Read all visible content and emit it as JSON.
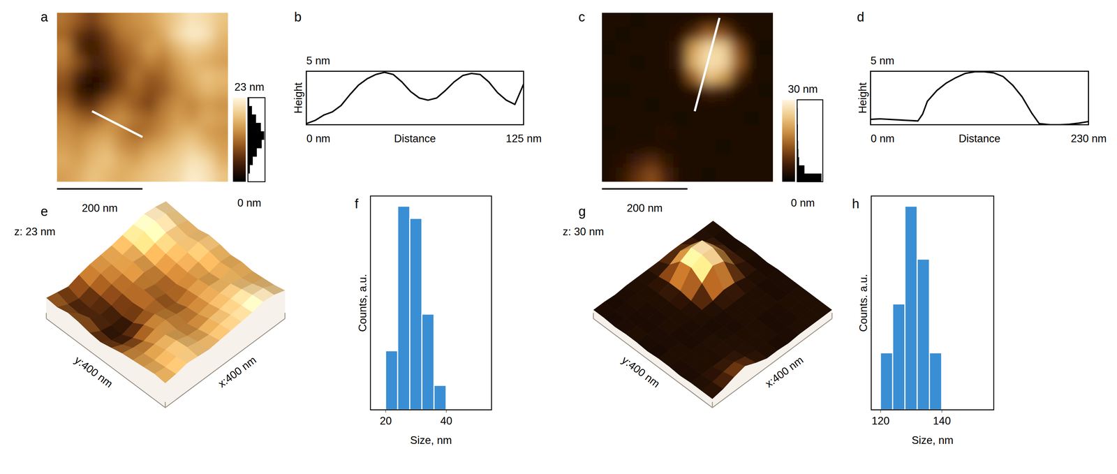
{
  "chart_data": [
    {
      "type": "heatmap",
      "panel": "a",
      "xlim": [
        0,
        400
      ],
      "ylim": [
        0,
        400
      ],
      "z": [
        [
          12,
          10,
          8,
          11,
          13,
          14,
          15,
          17,
          19,
          21,
          20,
          18
        ],
        [
          11,
          7,
          5,
          8,
          12,
          13,
          14,
          16,
          20,
          22,
          21,
          17
        ],
        [
          13,
          6,
          4,
          7,
          10,
          12,
          15,
          14,
          17,
          19,
          18,
          16
        ],
        [
          12,
          9,
          5,
          6,
          9,
          11,
          13,
          12,
          15,
          17,
          16,
          15
        ],
        [
          10,
          5,
          3,
          4,
          8,
          12,
          10,
          11,
          14,
          16,
          18,
          17
        ],
        [
          9,
          4,
          2,
          5,
          9,
          11,
          9,
          10,
          13,
          15,
          17,
          16
        ],
        [
          11,
          7,
          6,
          10,
          12,
          10,
          8,
          12,
          14,
          13,
          15,
          14
        ],
        [
          13,
          11,
          10,
          13,
          14,
          12,
          11,
          13,
          15,
          14,
          16,
          15
        ],
        [
          14,
          13,
          14,
          15,
          13,
          11,
          12,
          14,
          16,
          17,
          15,
          14
        ],
        [
          15,
          14,
          16,
          17,
          14,
          13,
          15,
          16,
          18,
          19,
          17,
          15
        ],
        [
          16,
          15,
          17,
          18,
          16,
          15,
          17,
          18,
          19,
          21,
          20,
          16
        ],
        [
          15,
          16,
          18,
          17,
          16,
          17,
          18,
          19,
          20,
          22,
          21,
          18
        ]
      ],
      "zlim": [
        0,
        23
      ],
      "zticks": [
        {
          "value": 23,
          "label": "23 nm"
        },
        {
          "value": 0,
          "label": "0 nm"
        }
      ],
      "height_histogram": {
        "bins": [
          0,
          2.3,
          4.6,
          6.9,
          9.2,
          11.5,
          13.8,
          16.1,
          18.4,
          20.7,
          23
        ],
        "counts": [
          0.03,
          0.12,
          0.3,
          0.55,
          0.85,
          1.0,
          0.8,
          0.5,
          0.25,
          0.08
        ]
      },
      "scale_bar": {
        "value": 200,
        "label": "200 nm"
      },
      "profile_line": {
        "x": [
          82,
          200
        ],
        "y": [
          167,
          106
        ]
      },
      "surface": {
        "panel": "e",
        "x_label": "x:400 nm",
        "y_label": "y:400 nm",
        "z_label": "z: 23 nm"
      }
    },
    {
      "type": "line",
      "panel": "b",
      "color": "#000000",
      "x": [
        0,
        5,
        10,
        15,
        20,
        25,
        30,
        35,
        40,
        45,
        50,
        55,
        60,
        65,
        70,
        75,
        80,
        85,
        90,
        95,
        100,
        105,
        110,
        115,
        120,
        125
      ],
      "values": [
        0.1,
        0.4,
        0.9,
        1.2,
        1.8,
        2.8,
        3.7,
        4.3,
        4.7,
        4.9,
        4.7,
        4.0,
        3.1,
        2.5,
        2.3,
        2.5,
        3.2,
        4.0,
        4.6,
        4.8,
        4.7,
        4.0,
        3.0,
        2.3,
        1.9,
        3.8
      ],
      "xlim": [
        0,
        125
      ],
      "ylim": [
        0,
        5
      ],
      "xticks": [
        {
          "value": 0,
          "label": "0 nm"
        },
        {
          "value": 125,
          "label": "125 nm"
        }
      ],
      "yticks": [
        {
          "value": 5,
          "label": "5 nm"
        }
      ],
      "x_label": "Distance",
      "y_label": "Height"
    },
    {
      "type": "heatmap",
      "panel": "c",
      "xlim": [
        0,
        400
      ],
      "ylim": [
        0,
        400
      ],
      "z": [
        [
          3,
          3,
          2,
          3,
          3,
          3,
          3,
          4,
          4,
          3,
          3,
          3
        ],
        [
          3,
          2,
          3,
          3,
          3,
          4,
          8,
          14,
          12,
          5,
          3,
          3
        ],
        [
          2,
          3,
          3,
          3,
          3,
          6,
          20,
          26,
          25,
          12,
          3,
          2
        ],
        [
          3,
          3,
          2,
          3,
          3,
          6,
          22,
          27,
          26,
          14,
          3,
          3
        ],
        [
          3,
          3,
          3,
          3,
          3,
          4,
          14,
          24,
          20,
          8,
          3,
          3
        ],
        [
          2,
          2,
          3,
          3,
          3,
          3,
          4,
          7,
          6,
          3,
          3,
          2
        ],
        [
          3,
          3,
          3,
          2,
          3,
          3,
          3,
          3,
          3,
          3,
          3,
          3
        ],
        [
          3,
          3,
          3,
          3,
          3,
          2,
          3,
          3,
          3,
          3,
          2,
          3
        ],
        [
          2,
          3,
          3,
          3,
          4,
          3,
          3,
          3,
          3,
          3,
          3,
          3
        ],
        [
          3,
          3,
          3,
          3,
          3,
          3,
          3,
          3,
          2,
          3,
          3,
          3
        ],
        [
          3,
          4,
          6,
          8,
          5,
          3,
          3,
          3,
          3,
          3,
          3,
          3
        ],
        [
          3,
          5,
          9,
          12,
          7,
          3,
          3,
          2,
          3,
          3,
          3,
          3
        ]
      ],
      "zlim": [
        0,
        30
      ],
      "zticks": [
        {
          "value": 30,
          "label": "30 nm"
        },
        {
          "value": 0,
          "label": "0 nm"
        }
      ],
      "height_histogram": {
        "bins": [
          0,
          3,
          6,
          9,
          12,
          15,
          18,
          21,
          24,
          27,
          30
        ],
        "counts": [
          1.0,
          0.3,
          0.08,
          0.05,
          0.04,
          0.03,
          0.03,
          0.02,
          0.02,
          0.01
        ]
      },
      "scale_bar": {
        "value": 200,
        "label": "200 nm"
      },
      "profile_line": {
        "x": [
          275,
          217
        ],
        "y": [
          388,
          167
        ]
      },
      "surface": {
        "panel": "g",
        "x_label": "x:400 nm",
        "y_label": "y:400 nm",
        "z_label": "z: 30 nm"
      }
    },
    {
      "type": "line",
      "panel": "d",
      "color": "#000000",
      "x": [
        0,
        10,
        20,
        30,
        40,
        50,
        55,
        60,
        70,
        80,
        90,
        100,
        110,
        120,
        130,
        140,
        150,
        160,
        170,
        178,
        190,
        200,
        210,
        220,
        230
      ],
      "values": [
        0.5,
        0.55,
        0.5,
        0.45,
        0.4,
        0.35,
        1.0,
        2.2,
        3.2,
        3.9,
        4.4,
        4.8,
        4.95,
        4.95,
        4.85,
        4.5,
        3.7,
        2.6,
        1.1,
        0.1,
        0.0,
        0.0,
        0.05,
        0.15,
        0.3
      ],
      "xlim": [
        0,
        230
      ],
      "ylim": [
        0,
        5
      ],
      "xticks": [
        {
          "value": 0,
          "label": "0 nm"
        },
        {
          "value": 230,
          "label": "230 nm"
        }
      ],
      "yticks": [
        {
          "value": 5,
          "label": "5 nm"
        }
      ],
      "x_label": "Distance",
      "y_label": "Height"
    },
    {
      "type": "histogram",
      "panel": "f",
      "color": "#3a8ed3",
      "bins": [
        20,
        24,
        28,
        32,
        36,
        40
      ],
      "values": [
        0.29,
        1.0,
        0.94,
        0.47,
        0.12
      ],
      "xlim": [
        15,
        55
      ],
      "ylim": [
        0,
        1.05
      ],
      "xticks": [
        20,
        40
      ],
      "tick_labels": "x",
      "x_label": "Size, nm",
      "y_label": "Counts, a.u."
    },
    {
      "type": "histogram",
      "panel": "h",
      "color": "#3a8ed3",
      "bins": [
        120,
        124,
        128,
        132,
        136,
        140
      ],
      "values": [
        0.28,
        0.52,
        1.0,
        0.74,
        0.28
      ],
      "xlim": [
        117,
        157
      ],
      "ylim": [
        0,
        1.05
      ],
      "xticks": [
        120,
        140
      ],
      "tick_labels": "x",
      "x_label": "Size, nm",
      "y_label": "Counts. a.u."
    }
  ]
}
